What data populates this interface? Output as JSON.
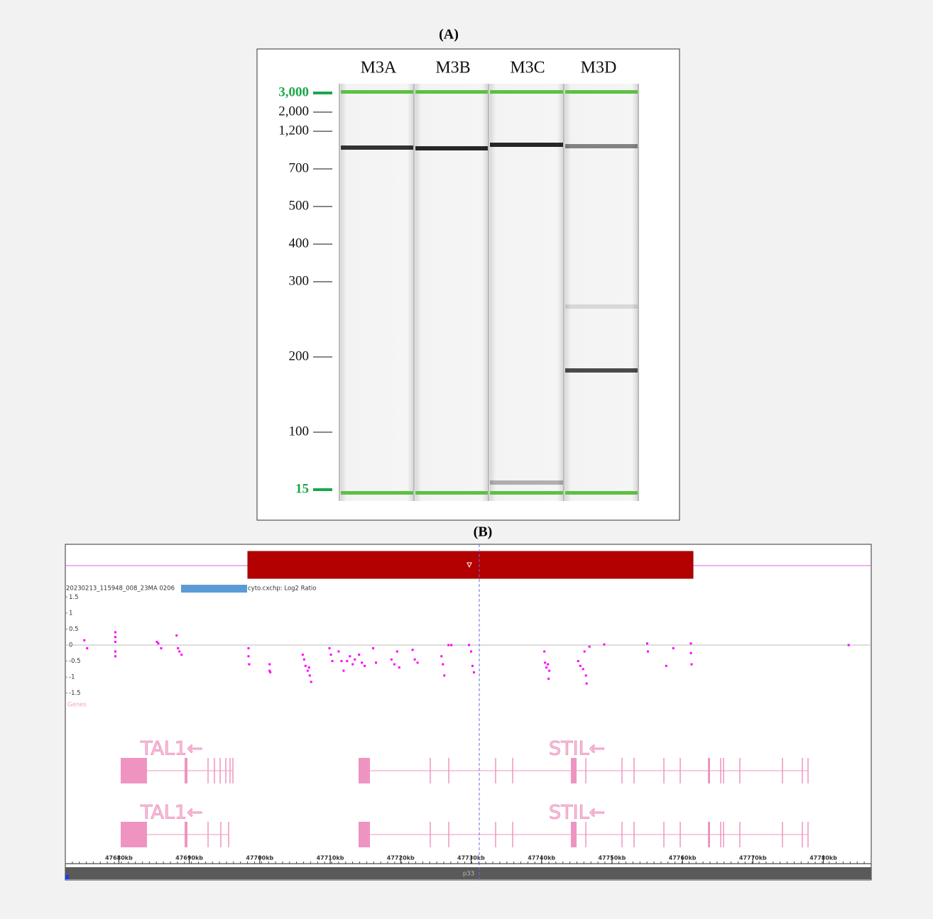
{
  "panel_a": {
    "label": "(A)",
    "lanes": [
      "M3A",
      "M3B",
      "M3C",
      "M3D"
    ],
    "ladder_labels": [
      "3,000",
      "2,000",
      "1,200",
      "700",
      "500",
      "400",
      "300",
      "200",
      "100",
      "15"
    ]
  },
  "panel_b": {
    "label": "(B)",
    "track_name_start": "20230213_115948_008_23MA 0206",
    "track_name_end": "cyto.cxchp: Log2 Ratio",
    "genes_label": "Genes",
    "gene_rows": [
      [
        "TAL1←",
        "STIL←"
      ],
      [
        "TAL1←",
        "STIL←"
      ]
    ],
    "cytoband": "p33"
  },
  "chart_data": {
    "type": "scatter",
    "color": "#ff00ff",
    "x": [
      47675.1,
      47675.5,
      47679.5,
      47679.5,
      47679.5,
      47679.5,
      47679.5,
      47685.4,
      47685.6,
      47686.0,
      47688.2,
      47688.4,
      47688.6,
      47688.9,
      47698.4,
      47698.4,
      47698.5,
      47701.4,
      47701.4,
      47701.5,
      47706.1,
      47706.3,
      47706.5,
      47706.8,
      47707.1,
      47707.3,
      47707.0,
      47709.9,
      47710.1,
      47710.3,
      47711.2,
      47711.6,
      47711.9,
      47712.4,
      47712.8,
      47713.2,
      47713.5,
      47714.1,
      47714.5,
      47714.9,
      47716.1,
      47716.5,
      47718.7,
      47719.1,
      47719.5,
      47719.8,
      47721.7,
      47722.0,
      47722.4,
      47725.8,
      47726.0,
      47726.2,
      47726.8,
      47727.2,
      47729.7,
      47730.0,
      47730.2,
      47730.4,
      47740.4,
      47740.5,
      47740.7,
      47740.9,
      47741.0,
      47741.1,
      47745.2,
      47745.5,
      47745.9,
      47746.1,
      47746.3,
      47746.4,
      47746.8,
      47748.9,
      47755.0,
      47755.1,
      47757.7,
      47758.7,
      47761.2,
      47761.2,
      47761.3,
      47783.6
    ],
    "values": [
      0.15,
      -0.1,
      0.4,
      0.25,
      0.1,
      -0.2,
      -0.35,
      0.1,
      0.05,
      -0.1,
      0.3,
      -0.1,
      -0.2,
      -0.3,
      -0.1,
      -0.35,
      -0.6,
      -0.6,
      -0.8,
      -0.85,
      -0.3,
      -0.45,
      -0.65,
      -0.8,
      -0.95,
      -1.15,
      -0.7,
      -0.1,
      -0.3,
      -0.5,
      -0.2,
      -0.5,
      -0.8,
      -0.5,
      -0.35,
      -0.6,
      -0.45,
      -0.3,
      -0.55,
      -0.65,
      -0.1,
      -0.55,
      -0.45,
      -0.6,
      -0.2,
      -0.7,
      -0.15,
      -0.45,
      -0.55,
      -0.35,
      -0.6,
      -0.95,
      0.0,
      0.0,
      0.0,
      -0.2,
      -0.65,
      -0.85,
      -0.2,
      -0.55,
      -0.7,
      -0.6,
      -1.05,
      -0.8,
      -0.5,
      -0.65,
      -0.75,
      -0.2,
      -0.95,
      -1.2,
      -0.05,
      0.02,
      0.05,
      -0.2,
      -0.65,
      -0.1,
      0.05,
      -0.25,
      -0.6,
      0.0
    ],
    "xlim": [
      47672.4,
      47786.8
    ],
    "xticks": [
      {
        "value": 47680,
        "label": "47680kb"
      },
      {
        "value": 47690,
        "label": "47690kb"
      },
      {
        "value": 47700,
        "label": "47700kb"
      },
      {
        "value": 47710,
        "label": "47710kb"
      },
      {
        "value": 47720,
        "label": "47720kb"
      },
      {
        "value": 47730,
        "label": "47730kb"
      },
      {
        "value": 47740,
        "label": "47740kb"
      },
      {
        "value": 47750,
        "label": "47750kb"
      },
      {
        "value": 47760,
        "label": "47760kb"
      },
      {
        "value": 47770,
        "label": "47770kb"
      },
      {
        "value": 47780,
        "label": "47780kb"
      }
    ],
    "ylim": [
      -1.75,
      1.75
    ],
    "yticks": [
      1.5,
      1,
      0.5,
      0,
      -0.5,
      -1,
      -1.5
    ]
  }
}
